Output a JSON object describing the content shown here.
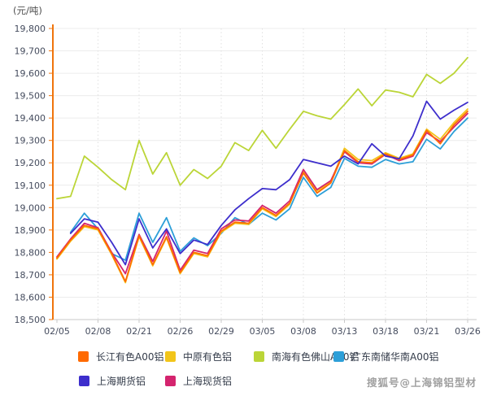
{
  "header": {
    "unit_label": "(元/吨)"
  },
  "watermark": {
    "text": "搜狐号@上海锦铝型材"
  },
  "chart_data": {
    "type": "line",
    "title": "",
    "ylabel": "元/吨",
    "ylim": [
      18500,
      19800
    ],
    "y_tick_step": 100,
    "y_tick_labels": [
      "19,800",
      "19,700",
      "19,600",
      "19,500",
      "19,400",
      "19,300",
      "19,200",
      "19,100",
      "19,000",
      "18,900",
      "18,800",
      "18,700",
      "18,600",
      "18,500"
    ],
    "x_tick_labels": [
      "02/05",
      "02/08",
      "02/21",
      "02/26",
      "02/29",
      "03/05",
      "03/08",
      "03/13",
      "03/18",
      "03/21",
      "03/26"
    ],
    "x_tick_every": 3,
    "x_dates": [
      "02/05",
      "02/06",
      "02/07",
      "02/08",
      "02/19",
      "02/20",
      "02/21",
      "02/22",
      "02/23",
      "02/26",
      "02/27",
      "02/28",
      "02/29",
      "03/01",
      "03/04",
      "03/05",
      "03/06",
      "03/07",
      "03/08",
      "03/11",
      "03/12",
      "03/13",
      "03/14",
      "03/15",
      "03/18",
      "03/19",
      "03/20",
      "03/21",
      "03/22",
      "03/25",
      "03/26"
    ],
    "grid": {
      "horizontal": "solid",
      "vertical": "dotted"
    },
    "legend_position": "bottom",
    "axis_colors": {
      "y_axis": "#F0740C",
      "x_axis": "#C9C9C9",
      "tick_text": "#454c5e"
    },
    "series": [
      {
        "name": "长江有色A00铝",
        "color": "#FF6A00",
        "values": [
          18775,
          18855,
          18920,
          18905,
          18795,
          18670,
          18875,
          18745,
          18870,
          18710,
          18800,
          18785,
          18895,
          18935,
          18930,
          19000,
          18965,
          19020,
          19155,
          19065,
          19110,
          19255,
          19205,
          19200,
          19240,
          19215,
          19235,
          19345,
          19285,
          19370,
          19430
        ]
      },
      {
        "name": "中原有色铝",
        "color": "#F2C51A",
        "values": [
          18770,
          18850,
          18915,
          18900,
          18790,
          18665,
          18870,
          18740,
          18865,
          18705,
          18795,
          18780,
          18890,
          18930,
          18925,
          18995,
          18960,
          19015,
          19165,
          19075,
          19115,
          19265,
          19215,
          19210,
          19245,
          19220,
          19240,
          19350,
          19305,
          19380,
          19440
        ]
      },
      {
        "name": "南海有色佛山A00铝",
        "color": "#BBD537",
        "values": [
          19040,
          19050,
          19230,
          19180,
          19125,
          19080,
          19300,
          19150,
          19245,
          19100,
          19170,
          19130,
          19185,
          19290,
          19255,
          19345,
          19265,
          19350,
          19430,
          19410,
          19395,
          19460,
          19530,
          19455,
          19525,
          19515,
          19495,
          19595,
          19555,
          19600,
          19670
        ]
      },
      {
        "name": "广东南储华南A00铝",
        "color": "#2D9FD8",
        "values": [
          null,
          18890,
          18975,
          18905,
          18795,
          18765,
          18975,
          18845,
          18955,
          18805,
          18865,
          18830,
          18885,
          18955,
          18925,
          18975,
          18945,
          18995,
          19135,
          19050,
          19090,
          19220,
          19185,
          19180,
          19215,
          19195,
          19205,
          19305,
          19262,
          19340,
          19400
        ]
      },
      {
        "name": "上海期货铝",
        "color": "#3D2ECC",
        "values": [
          null,
          18885,
          18950,
          18935,
          18845,
          18745,
          18950,
          18820,
          18905,
          18795,
          18855,
          18835,
          18920,
          18990,
          19040,
          19085,
          19080,
          19125,
          19215,
          19200,
          19185,
          19230,
          19195,
          19285,
          19230,
          19218,
          19320,
          19475,
          19395,
          19435,
          19470
        ]
      },
      {
        "name": "上海现货铝",
        "color": "#D4246E",
        "values": [
          18780,
          18860,
          18930,
          18910,
          18800,
          18705,
          18880,
          18760,
          18895,
          18720,
          18810,
          18795,
          18905,
          18945,
          18940,
          19010,
          18975,
          19030,
          19170,
          19080,
          19120,
          19250,
          19200,
          19195,
          19238,
          19210,
          19230,
          19335,
          19295,
          19360,
          19420
        ]
      }
    ]
  }
}
